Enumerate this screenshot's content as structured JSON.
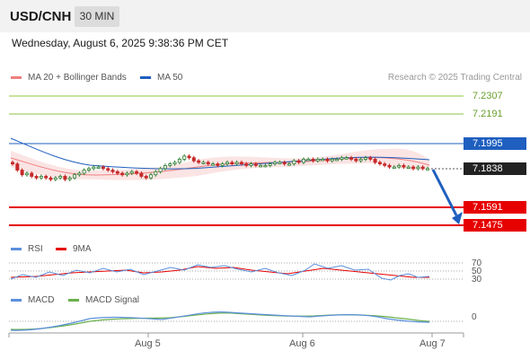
{
  "header": {
    "symbol": "USD/CNH",
    "interval": "30 MIN"
  },
  "datetime": "Wednesday, August 6, 2025 9:38:36 PM CET",
  "legend": {
    "bollinger": "MA 20 + Bollinger Bands",
    "ma50": "MA 50",
    "credit": "Research © 2025 Trading Central"
  },
  "price_levels": [
    {
      "value": "7.2307",
      "role": "resistance",
      "color": "#8cc63f"
    },
    {
      "value": "7.2191",
      "role": "resistance",
      "color": "#8cc63f"
    },
    {
      "value": "7.1995",
      "role": "pivot",
      "color": "#1f5fbf"
    },
    {
      "value": "7.1838",
      "role": "last",
      "color": "#222222"
    },
    {
      "value": "7.1591",
      "role": "support",
      "color": "#e60000"
    },
    {
      "value": "7.1475",
      "role": "support",
      "color": "#e60000"
    }
  ],
  "rsi": {
    "label": "RSI",
    "ma_label": "9MA",
    "levels": [
      "70",
      "50",
      "30"
    ]
  },
  "macd": {
    "label": "MACD",
    "signal_label": "MACD Signal",
    "zero_label": "0"
  },
  "x_axis": [
    "Aug 5",
    "Aug 6",
    "Aug 7"
  ],
  "colors": {
    "ma20": "#f08080",
    "ma50": "#1f5fbf",
    "rsi": "#5b8fdc",
    "rsi_ma": "#e60000",
    "macd": "#5b8fdc",
    "signal": "#6ab04c",
    "up": "#2e7d32",
    "down": "#c62828"
  },
  "chart_data": {
    "type": "candlestick",
    "y_range": [
      7.1475,
      7.2307
    ],
    "closes": [
      7.187,
      7.183,
      7.18,
      7.181,
      7.179,
      7.178,
      7.179,
      7.178,
      7.177,
      7.178,
      7.179,
      7.177,
      7.178,
      7.18,
      7.181,
      7.183,
      7.184,
      7.185,
      7.185,
      7.184,
      7.183,
      7.182,
      7.181,
      7.18,
      7.181,
      7.182,
      7.181,
      7.179,
      7.178,
      7.18,
      7.182,
      7.184,
      7.186,
      7.187,
      7.188,
      7.19,
      7.192,
      7.191,
      7.189,
      7.188,
      7.188,
      7.187,
      7.187,
      7.186,
      7.187,
      7.188,
      7.187,
      7.188,
      7.187,
      7.186,
      7.187,
      7.186,
      7.186,
      7.186,
      7.187,
      7.188,
      7.188,
      7.187,
      7.187,
      7.189,
      7.188,
      7.19,
      7.19,
      7.189,
      7.19,
      7.19,
      7.189,
      7.19,
      7.19,
      7.191,
      7.191,
      7.19,
      7.189,
      7.19,
      7.191,
      7.19,
      7.188,
      7.187,
      7.186,
      7.185,
      7.185,
      7.186,
      7.185,
      7.185,
      7.184,
      7.185,
      7.184,
      7.184
    ],
    "rsi_range": [
      0,
      100
    ],
    "macd_zero": 0
  }
}
